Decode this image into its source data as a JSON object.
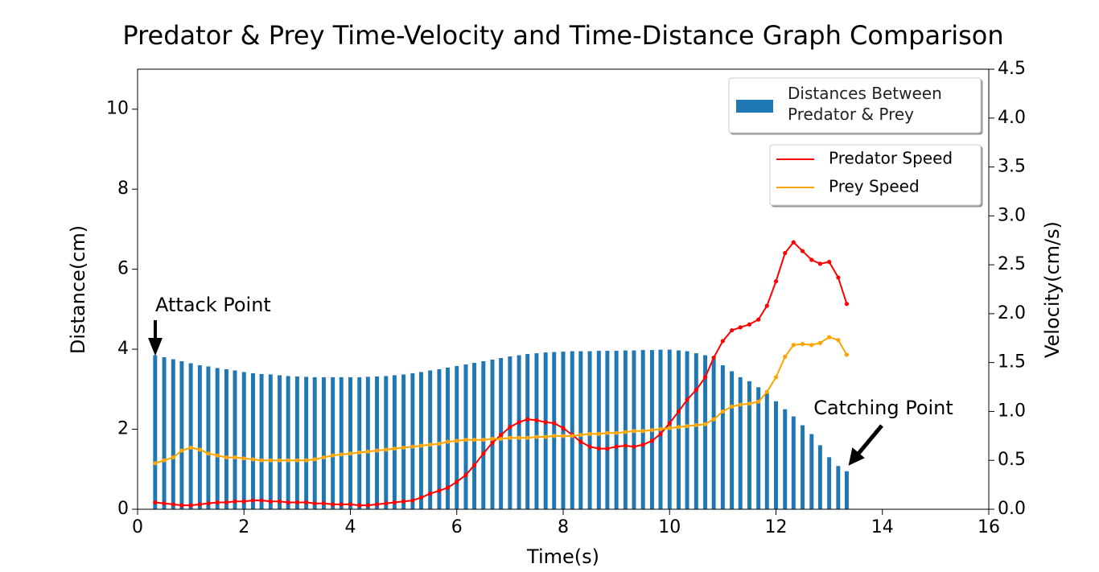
{
  "chart_data": {
    "type": "combo",
    "title": "Predator & Prey Time-Velocity and Time-Distance Graph Comparison",
    "x_label": "Time(s)",
    "y_label": "Distance(cm)",
    "y2_label": "Velocity(cm/s)",
    "xlim": [
      0,
      16
    ],
    "xticks": [
      0,
      2,
      4,
      6,
      8,
      10,
      12,
      14,
      16
    ],
    "ylim": [
      0,
      11
    ],
    "yticks": [
      0,
      2,
      4,
      6,
      8,
      10
    ],
    "y2lim": [
      0,
      4.5
    ],
    "y2ticks": [
      {
        "value": 0,
        "label": "0.0"
      },
      0.5,
      {
        "value": 1,
        "label": "1.0"
      },
      1.5,
      {
        "value": 2,
        "label": "2.0"
      },
      2.5,
      {
        "value": 3,
        "label": "3.0"
      },
      3.5,
      {
        "value": 4,
        "label": "4.0"
      },
      4.5
    ],
    "grid": false,
    "legend": "upper right",
    "annotations": [
      "Attack Point",
      "Catching Point"
    ],
    "x": [
      0.33,
      0.5,
      0.67,
      0.83,
      1.0,
      1.17,
      1.33,
      1.5,
      1.67,
      1.83,
      2.0,
      2.17,
      2.33,
      2.5,
      2.67,
      2.83,
      3.0,
      3.17,
      3.33,
      3.5,
      3.67,
      3.83,
      4.0,
      4.17,
      4.33,
      4.5,
      4.67,
      4.83,
      5.0,
      5.17,
      5.33,
      5.5,
      5.67,
      5.83,
      6.0,
      6.17,
      6.33,
      6.5,
      6.67,
      6.83,
      7.0,
      7.17,
      7.33,
      7.5,
      7.67,
      7.83,
      8.0,
      8.17,
      8.33,
      8.5,
      8.67,
      8.83,
      9.0,
      9.17,
      9.33,
      9.5,
      9.67,
      9.83,
      10.0,
      10.17,
      10.33,
      10.5,
      10.67,
      10.83,
      11.0,
      11.17,
      11.33,
      11.5,
      11.67,
      11.83,
      12.0,
      12.17,
      12.33,
      12.5,
      12.67,
      12.83,
      13.0,
      13.17,
      13.33
    ],
    "series": [
      {
        "name": "Distances Between Predator & Prey",
        "type": "bar",
        "axis": "y",
        "color": "#1f77b4",
        "values": [
          3.85,
          3.8,
          3.75,
          3.7,
          3.65,
          3.6,
          3.57,
          3.53,
          3.5,
          3.47,
          3.43,
          3.4,
          3.38,
          3.37,
          3.35,
          3.33,
          3.32,
          3.31,
          3.3,
          3.3,
          3.3,
          3.3,
          3.3,
          3.3,
          3.31,
          3.32,
          3.33,
          3.35,
          3.37,
          3.4,
          3.43,
          3.47,
          3.5,
          3.54,
          3.58,
          3.62,
          3.66,
          3.7,
          3.74,
          3.78,
          3.82,
          3.85,
          3.88,
          3.9,
          3.92,
          3.93,
          3.94,
          3.95,
          3.95,
          3.95,
          3.96,
          3.96,
          3.96,
          3.97,
          3.97,
          3.98,
          3.98,
          3.99,
          3.99,
          3.97,
          3.95,
          3.9,
          3.85,
          3.75,
          3.6,
          3.45,
          3.3,
          3.2,
          3.05,
          2.9,
          2.7,
          2.5,
          2.32,
          2.1,
          1.88,
          1.6,
          1.3,
          1.08,
          0.95
        ]
      },
      {
        "name": "Predator Speed",
        "type": "line",
        "axis": "y2",
        "color": "#ff0000",
        "values": [
          0.07,
          0.06,
          0.05,
          0.04,
          0.04,
          0.05,
          0.06,
          0.07,
          0.07,
          0.08,
          0.08,
          0.09,
          0.09,
          0.08,
          0.08,
          0.07,
          0.07,
          0.07,
          0.06,
          0.06,
          0.05,
          0.05,
          0.05,
          0.04,
          0.04,
          0.05,
          0.06,
          0.07,
          0.08,
          0.09,
          0.12,
          0.16,
          0.19,
          0.22,
          0.28,
          0.35,
          0.45,
          0.57,
          0.68,
          0.76,
          0.84,
          0.89,
          0.92,
          0.91,
          0.89,
          0.88,
          0.83,
          0.76,
          0.69,
          0.64,
          0.62,
          0.62,
          0.64,
          0.65,
          0.64,
          0.66,
          0.7,
          0.77,
          0.88,
          1.0,
          1.12,
          1.22,
          1.35,
          1.55,
          1.72,
          1.83,
          1.86,
          1.89,
          1.94,
          2.08,
          2.33,
          2.62,
          2.73,
          2.64,
          2.55,
          2.51,
          2.53,
          2.37,
          2.1
        ]
      },
      {
        "name": "Prey Speed",
        "type": "line",
        "axis": "y2",
        "color": "#ffa500",
        "values": [
          0.47,
          0.5,
          0.53,
          0.6,
          0.63,
          0.61,
          0.57,
          0.55,
          0.53,
          0.53,
          0.52,
          0.51,
          0.5,
          0.5,
          0.5,
          0.5,
          0.5,
          0.5,
          0.51,
          0.53,
          0.55,
          0.56,
          0.57,
          0.58,
          0.59,
          0.6,
          0.61,
          0.62,
          0.63,
          0.64,
          0.65,
          0.66,
          0.67,
          0.69,
          0.7,
          0.71,
          0.71,
          0.71,
          0.72,
          0.72,
          0.73,
          0.73,
          0.73,
          0.74,
          0.74,
          0.75,
          0.75,
          0.75,
          0.76,
          0.77,
          0.77,
          0.78,
          0.78,
          0.79,
          0.8,
          0.8,
          0.81,
          0.82,
          0.83,
          0.84,
          0.85,
          0.86,
          0.87,
          0.92,
          1.0,
          1.05,
          1.07,
          1.08,
          1.1,
          1.2,
          1.35,
          1.56,
          1.68,
          1.69,
          1.68,
          1.7,
          1.76,
          1.73,
          1.58
        ]
      }
    ]
  }
}
